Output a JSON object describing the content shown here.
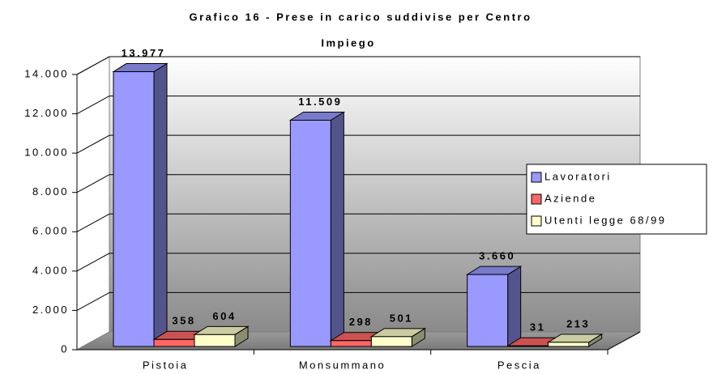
{
  "chart_data": {
    "type": "bar3d",
    "title": "Grafico 16 - Prese in carico suddivise per Centro Impiego",
    "categories": [
      "Pistoia",
      "Monsummano",
      "Pescia"
    ],
    "series": [
      {
        "name": "Lavoratori",
        "color": "#9999ff",
        "values": [
          13977,
          11509,
          3660
        ],
        "value_labels": [
          "13.977",
          "11.509",
          "3.660"
        ]
      },
      {
        "name": "Aziende",
        "color": "#ff6666",
        "values": [
          358,
          298,
          31
        ]
      },
      {
        "name": "Utenti legge 68/99",
        "color": "#ffffcc",
        "values": [
          604,
          501,
          213
        ]
      }
    ],
    "ylim": [
      0,
      14000
    ],
    "yticks": [
      0,
      {
        "value": 2000,
        "label": "2.000"
      },
      {
        "value": 4000,
        "label": "4.000"
      },
      {
        "value": 6000,
        "label": "6.000"
      },
      {
        "value": 8000,
        "label": "8.000"
      },
      {
        "value": 10000,
        "label": "10.000"
      },
      {
        "value": 12000,
        "label": "12.000"
      },
      {
        "value": 14000,
        "label": "14.000"
      }
    ],
    "grid": true,
    "legend": "right"
  }
}
